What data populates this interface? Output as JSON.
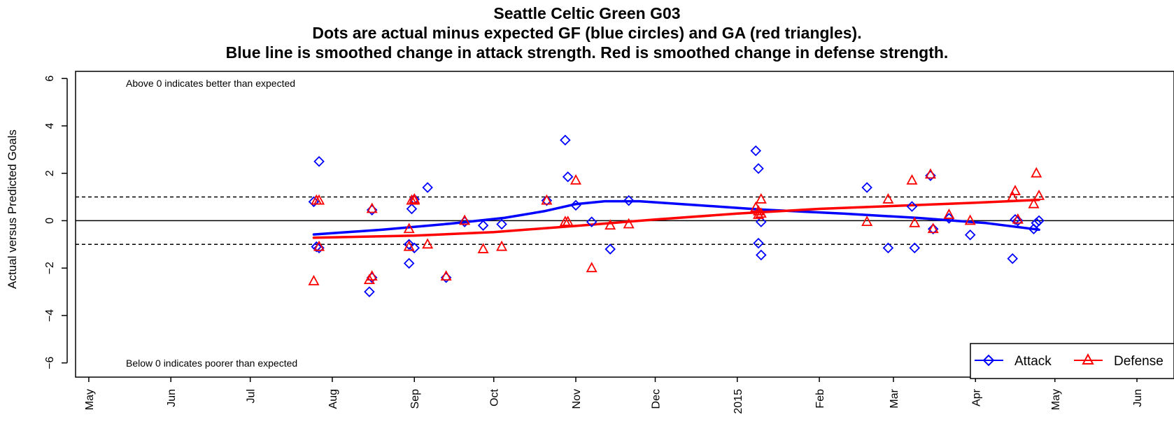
{
  "chart_data": {
    "type": "scatter",
    "title": "Seattle Celtic Green G03",
    "subtitle_lines": [
      "Dots are actual minus expected GF (blue circles) and GA (red triangles).",
      "Blue line is smoothed change in attack strength. Red is smoothed change in defense strength."
    ],
    "ylabel": "Actual versus Predicted Goals",
    "xlabel": "",
    "ylim": [
      -6.6,
      6.3
    ],
    "yticks": [
      "6",
      "4",
      "2",
      "0",
      "−2",
      "−4",
      "−6"
    ],
    "ytick_values": [
      6,
      4,
      2,
      0,
      -2,
      -4,
      -6
    ],
    "xticks": [
      "May",
      "Jun",
      "Jul",
      "Aug",
      "Sep",
      "Oct",
      "Nov",
      "Dec",
      "2015",
      "Feb",
      "Mar",
      "Apr",
      "May",
      "Jun"
    ],
    "xtick_dates": [
      "2014-05-01",
      "2014-06-01",
      "2014-07-01",
      "2014-08-01",
      "2014-09-01",
      "2014-10-01",
      "2014-11-01",
      "2014-12-01",
      "2015-01-01",
      "2015-02-01",
      "2015-03-01",
      "2015-04-01",
      "2015-05-01",
      "2015-06-01"
    ],
    "xlim": [
      "2014-04-26",
      "2015-06-15"
    ],
    "hlines": [
      {
        "y": 0,
        "style": "solid"
      },
      {
        "y": 1,
        "style": "dashed"
      },
      {
        "y": -1,
        "style": "dashed"
      }
    ],
    "annotations": {
      "top": "Above 0 indicates better than expected",
      "bottom": "Below 0 indicates poorer than expected"
    },
    "legend": {
      "placement": "bottom-right",
      "entries": [
        {
          "label": "Attack",
          "color": "#0000ff",
          "marker": "diamond"
        },
        {
          "label": "Defense",
          "color": "#ff0000",
          "marker": "triangle"
        }
      ]
    },
    "series": [
      {
        "name": "Attack",
        "color": "#0000ff",
        "marker": "diamond",
        "points": [
          {
            "x": "2014-07-25",
            "y": 0.8
          },
          {
            "x": "2014-07-26",
            "y": -1.1
          },
          {
            "x": "2014-07-27",
            "y": 2.5
          },
          {
            "x": "2014-07-27",
            "y": -1.15
          },
          {
            "x": "2014-08-15",
            "y": -3.0
          },
          {
            "x": "2014-08-16",
            "y": -2.4
          },
          {
            "x": "2014-08-16",
            "y": 0.45
          },
          {
            "x": "2014-08-30",
            "y": -1.8
          },
          {
            "x": "2014-08-30",
            "y": -1.0
          },
          {
            "x": "2014-08-31",
            "y": 0.5
          },
          {
            "x": "2014-09-01",
            "y": 0.9
          },
          {
            "x": "2014-09-01",
            "y": -1.15
          },
          {
            "x": "2014-09-06",
            "y": 1.4
          },
          {
            "x": "2014-09-13",
            "y": -2.4
          },
          {
            "x": "2014-09-20",
            "y": -0.05
          },
          {
            "x": "2014-09-27",
            "y": -0.2
          },
          {
            "x": "2014-10-04",
            "y": -0.15
          },
          {
            "x": "2014-10-21",
            "y": 0.85
          },
          {
            "x": "2014-10-28",
            "y": 3.4
          },
          {
            "x": "2014-10-29",
            "y": 1.85
          },
          {
            "x": "2014-11-01",
            "y": 0.65
          },
          {
            "x": "2014-11-07",
            "y": -0.05
          },
          {
            "x": "2014-11-14",
            "y": -1.2
          },
          {
            "x": "2014-11-21",
            "y": 0.85
          },
          {
            "x": "2015-01-08",
            "y": 2.95
          },
          {
            "x": "2015-01-09",
            "y": 2.2
          },
          {
            "x": "2015-01-09",
            "y": -0.95
          },
          {
            "x": "2015-01-10",
            "y": -0.05
          },
          {
            "x": "2015-01-10",
            "y": -1.45
          },
          {
            "x": "2015-02-19",
            "y": 1.4
          },
          {
            "x": "2015-02-27",
            "y": -1.15
          },
          {
            "x": "2015-03-08",
            "y": 0.6
          },
          {
            "x": "2015-03-09",
            "y": -1.15
          },
          {
            "x": "2015-03-15",
            "y": 1.9
          },
          {
            "x": "2015-03-16",
            "y": -0.35
          },
          {
            "x": "2015-03-22",
            "y": 0.1
          },
          {
            "x": "2015-03-30",
            "y": -0.6
          },
          {
            "x": "2015-04-15",
            "y": -1.6
          },
          {
            "x": "2015-04-16",
            "y": 0.05
          },
          {
            "x": "2015-04-17",
            "y": 0.0
          },
          {
            "x": "2015-04-23",
            "y": -0.35
          },
          {
            "x": "2015-04-24",
            "y": -0.1
          },
          {
            "x": "2015-04-25",
            "y": 0.0
          }
        ]
      },
      {
        "name": "Defense",
        "color": "#ff0000",
        "marker": "triangle",
        "points": [
          {
            "x": "2014-07-25",
            "y": -2.55
          },
          {
            "x": "2014-07-26",
            "y": 0.85
          },
          {
            "x": "2014-07-27",
            "y": 0.85
          },
          {
            "x": "2014-07-27",
            "y": -1.1
          },
          {
            "x": "2014-08-15",
            "y": -2.5
          },
          {
            "x": "2014-08-16",
            "y": -2.35
          },
          {
            "x": "2014-08-16",
            "y": 0.5
          },
          {
            "x": "2014-08-30",
            "y": -1.1
          },
          {
            "x": "2014-08-30",
            "y": -0.35
          },
          {
            "x": "2014-08-31",
            "y": 0.85
          },
          {
            "x": "2014-09-01",
            "y": 0.9
          },
          {
            "x": "2014-09-01",
            "y": 0.85
          },
          {
            "x": "2014-09-06",
            "y": -1.0
          },
          {
            "x": "2014-09-13",
            "y": -2.35
          },
          {
            "x": "2014-09-20",
            "y": 0.0
          },
          {
            "x": "2014-09-27",
            "y": -1.2
          },
          {
            "x": "2014-10-04",
            "y": -1.1
          },
          {
            "x": "2014-10-21",
            "y": 0.85
          },
          {
            "x": "2014-10-28",
            "y": -0.05
          },
          {
            "x": "2014-10-29",
            "y": -0.05
          },
          {
            "x": "2014-11-01",
            "y": 1.7
          },
          {
            "x": "2014-11-07",
            "y": -2.0
          },
          {
            "x": "2014-11-14",
            "y": -0.2
          },
          {
            "x": "2014-11-21",
            "y": -0.15
          },
          {
            "x": "2015-01-08",
            "y": 0.55
          },
          {
            "x": "2015-01-09",
            "y": 0.25
          },
          {
            "x": "2015-01-09",
            "y": 0.4
          },
          {
            "x": "2015-01-10",
            "y": 0.9
          },
          {
            "x": "2015-01-10",
            "y": 0.3
          },
          {
            "x": "2015-02-19",
            "y": -0.05
          },
          {
            "x": "2015-02-27",
            "y": 0.9
          },
          {
            "x": "2015-03-08",
            "y": 1.7
          },
          {
            "x": "2015-03-09",
            "y": -0.1
          },
          {
            "x": "2015-03-15",
            "y": 1.95
          },
          {
            "x": "2015-03-16",
            "y": -0.35
          },
          {
            "x": "2015-03-22",
            "y": 0.25
          },
          {
            "x": "2015-03-30",
            "y": 0.0
          },
          {
            "x": "2015-04-15",
            "y": 1.0
          },
          {
            "x": "2015-04-16",
            "y": 1.25
          },
          {
            "x": "2015-04-17",
            "y": 0.05
          },
          {
            "x": "2015-04-23",
            "y": 0.7
          },
          {
            "x": "2015-04-24",
            "y": 2.0
          },
          {
            "x": "2015-04-25",
            "y": 1.05
          }
        ]
      }
    ],
    "smooth_lines": [
      {
        "name": "Attack",
        "color": "#0000ff",
        "points": [
          {
            "x": "2014-07-25",
            "y": -0.58
          },
          {
            "x": "2014-08-20",
            "y": -0.38
          },
          {
            "x": "2014-09-15",
            "y": -0.12
          },
          {
            "x": "2014-10-05",
            "y": 0.12
          },
          {
            "x": "2014-10-20",
            "y": 0.4
          },
          {
            "x": "2014-11-01",
            "y": 0.7
          },
          {
            "x": "2014-11-12",
            "y": 0.82
          },
          {
            "x": "2014-11-25",
            "y": 0.82
          },
          {
            "x": "2014-12-15",
            "y": 0.67
          },
          {
            "x": "2015-01-10",
            "y": 0.47
          },
          {
            "x": "2015-02-10",
            "y": 0.3
          },
          {
            "x": "2015-03-10",
            "y": 0.12
          },
          {
            "x": "2015-04-05",
            "y": -0.1
          },
          {
            "x": "2015-04-25",
            "y": -0.38
          }
        ]
      },
      {
        "name": "Defense",
        "color": "#ff0000",
        "points": [
          {
            "x": "2014-07-25",
            "y": -0.72
          },
          {
            "x": "2014-09-01",
            "y": -0.63
          },
          {
            "x": "2014-10-01",
            "y": -0.48
          },
          {
            "x": "2014-11-01",
            "y": -0.22
          },
          {
            "x": "2014-12-01",
            "y": 0.05
          },
          {
            "x": "2015-01-01",
            "y": 0.3
          },
          {
            "x": "2015-02-01",
            "y": 0.5
          },
          {
            "x": "2015-03-01",
            "y": 0.62
          },
          {
            "x": "2015-04-01",
            "y": 0.76
          },
          {
            "x": "2015-04-25",
            "y": 0.88
          }
        ]
      }
    ]
  }
}
